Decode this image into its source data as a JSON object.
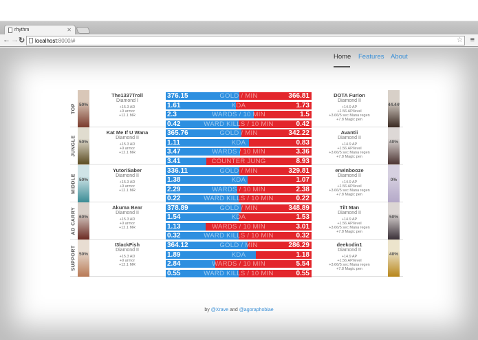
{
  "browser": {
    "tab_title": "rhythm",
    "url_host": "localhost",
    "url_rest": ":8000/#"
  },
  "nav": {
    "items": [
      "Home",
      "Features",
      "About"
    ],
    "active": "Home"
  },
  "rows": [
    {
      "role": "TOP",
      "left": {
        "name": "The1337Troll",
        "rank": "Diamond I",
        "pct": "50%",
        "stats": [
          "+15.3 AD",
          "+9 armor",
          "+12.1 MR"
        ]
      },
      "right": {
        "name": "DOTA Furion",
        "rank": "Diamond II",
        "pct": "44.44%",
        "stats": [
          "+14.9 AP",
          "+1.56 AP/level",
          "+3.66/5 sec Mana regen",
          "+7.8 Magic pen"
        ]
      },
      "bars": [
        {
          "label": "GOLD / MIN",
          "l": "376.15",
          "r": "366.81"
        },
        {
          "label": "KDA",
          "l": "1.61",
          "r": "1.73"
        },
        {
          "label": "WARDS / 10 MIN",
          "l": "2.3",
          "r": "1.5"
        },
        {
          "label": "WARD KILLS / 10 MIN",
          "l": "0.42",
          "r": "0.42"
        }
      ]
    },
    {
      "role": "JUNGLE",
      "left": {
        "name": "Kat Me If U Wana",
        "rank": "Diamond II",
        "pct": "50%",
        "stats": [
          "+15.3 AD",
          "+9 armor",
          "+12.1 MR"
        ]
      },
      "right": {
        "name": "Avantii",
        "rank": "Diamond II",
        "pct": "40%",
        "stats": [
          "+14.9 AP",
          "+1.56 AP/level",
          "+3.66/5 sec Mana regen",
          "+7.8 Magic pen"
        ]
      },
      "bars": [
        {
          "label": "GOLD / MIN",
          "l": "365.76",
          "r": "342.22"
        },
        {
          "label": "KDA",
          "l": "1.11",
          "r": "0.83"
        },
        {
          "label": "WARDS / 10 MIN",
          "l": "3.47",
          "r": "3.36"
        },
        {
          "label": "COUNTER JUNG",
          "l": "3.41",
          "r": "8.93"
        }
      ]
    },
    {
      "role": "MIDDLE",
      "left": {
        "name": "YutoriSaber",
        "rank": "Diamond II",
        "pct": "50%",
        "stats": [
          "+15.3 AD",
          "+9 armor",
          "+12.1 MR"
        ]
      },
      "right": {
        "name": "erwinbooze",
        "rank": "Diamond II",
        "pct": "0%",
        "stats": [
          "+14.9 AP",
          "+1.56 AP/level",
          "+3.66/5 sec Mana regen",
          "+7.8 Magic pen"
        ]
      },
      "bars": [
        {
          "label": "GOLD / MIN",
          "l": "336.11",
          "r": "329.81"
        },
        {
          "label": "KDA",
          "l": "1.38",
          "r": "1.07"
        },
        {
          "label": "WARDS / 10 MIN",
          "l": "2.29",
          "r": "2.38"
        },
        {
          "label": "WARD KILLS / 10 MIN",
          "l": "0.22",
          "r": "0.22"
        }
      ]
    },
    {
      "role": "AD CARRY",
      "left": {
        "name": "Akuma Bear",
        "rank": "Diamond II",
        "pct": "60%",
        "stats": [
          "+15.3 AD",
          "+9 armor",
          "+12.1 MR"
        ]
      },
      "right": {
        "name": "Tilt Man",
        "rank": "Diamond II",
        "pct": "50%",
        "stats": [
          "+14.9 AP",
          "+1.56 AP/level",
          "+3.66/5 sec Mana regen",
          "+7.8 Magic pen"
        ]
      },
      "bars": [
        {
          "label": "GOLD / MIN",
          "l": "378.89",
          "r": "348.89"
        },
        {
          "label": "KDA",
          "l": "1.54",
          "r": "1.53"
        },
        {
          "label": "WARDS / 10 MIN",
          "l": "1.13",
          "r": "3.01"
        },
        {
          "label": "WARD KILLS / 10 MIN",
          "l": "0.32",
          "r": "0.32"
        }
      ]
    },
    {
      "role": "SUPPORT",
      "left": {
        "name": "I3lackFish",
        "rank": "Diamond II",
        "pct": "50%",
        "stats": [
          "+15.3 AD",
          "+9 armor",
          "+12.1 MR"
        ]
      },
      "right": {
        "name": "deekodin1",
        "rank": "Diamond II",
        "pct": "40%",
        "stats": [
          "+14.9 AP",
          "+1.56 AP/level",
          "+3.66/5 sec Mana regen",
          "+7.8 Magic pen"
        ]
      },
      "bars": [
        {
          "label": "GOLD / MIN",
          "l": "364.12",
          "r": "286.29"
        },
        {
          "label": "KDA",
          "l": "1.89",
          "r": "1.18"
        },
        {
          "label": "WARDS / 10 MIN",
          "l": "2.84",
          "r": "5.54"
        },
        {
          "label": "WARD KILLS / 10 MIN",
          "l": "0.55",
          "r": "0.55"
        }
      ]
    }
  ],
  "footer": {
    "by": "by",
    "and": "and",
    "author1": "@Xrave",
    "author2": "@agoraphobiae"
  },
  "colors": {
    "blue": "#2d8fe0",
    "red": "#e3262c",
    "link": "#3a8fd6"
  },
  "portrait_colors": [
    [
      "#d9c7b8",
      "#7a3a2c"
    ],
    [
      "#e0dccf",
      "#5a4a20"
    ],
    [
      "#cfe3e6",
      "#3b8c95"
    ],
    [
      "#d8cfc8",
      "#6b2a22"
    ],
    [
      "#e8ddd2",
      "#b87955"
    ]
  ],
  "right_portrait_colors": [
    [
      "#d8d0c8",
      "#3a2a22"
    ],
    [
      "#ddd8d6",
      "#4a3230"
    ],
    [
      "#d6d0e0",
      "#b4a8c8"
    ],
    [
      "#dcd6d4",
      "#3a3038"
    ],
    [
      "#ece4cc",
      "#b8861a"
    ]
  ]
}
